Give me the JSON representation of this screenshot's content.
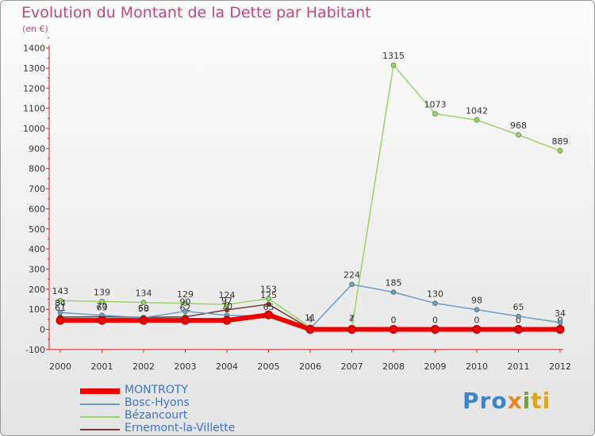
{
  "header": {
    "title": "Evolution du Montant de la Dette par Habitant",
    "subtitle": "(en €)"
  },
  "logo": {
    "text": "Proxiti"
  },
  "chart_data": {
    "type": "line",
    "title": "Evolution du Montant de la Dette par Habitant",
    "ylabel": "(en €)",
    "xlabel": "",
    "x": [
      2000,
      2001,
      2002,
      2003,
      2004,
      2005,
      2006,
      2007,
      2008,
      2009,
      2010,
      2011,
      2012
    ],
    "ylim": [
      -100,
      1400
    ],
    "yticks": [
      -100,
      0,
      100,
      200,
      300,
      400,
      500,
      600,
      700,
      800,
      900,
      1000,
      1100,
      1200,
      1300,
      1400
    ],
    "grid": false,
    "legend_position": "bottom-left",
    "series": [
      {
        "name": "MONTROTY",
        "color": "#ee0000",
        "values": [
          45,
          45,
          45,
          45,
          45,
          72,
          0,
          0,
          0,
          0,
          0,
          0,
          0
        ]
      },
      {
        "name": "Bosc-Hyons",
        "color": "#6a9ccc",
        "values": [
          84,
          70,
          58,
          90,
          70,
          65,
          4,
          224,
          185,
          130,
          98,
          65,
          34
        ]
      },
      {
        "name": "Bézancourt",
        "color": "#98d468",
        "values": [
          143,
          139,
          134,
          129,
          124,
          153,
          11,
          7,
          1315,
          1073,
          1042,
          968,
          889
        ]
      },
      {
        "name": "Ernemont-la-Villette",
        "color": "#7a3838",
        "values": [
          61,
          63,
          60,
          62,
          97,
          125,
          4,
          4,
          0,
          0,
          0,
          0,
          0
        ]
      }
    ]
  }
}
